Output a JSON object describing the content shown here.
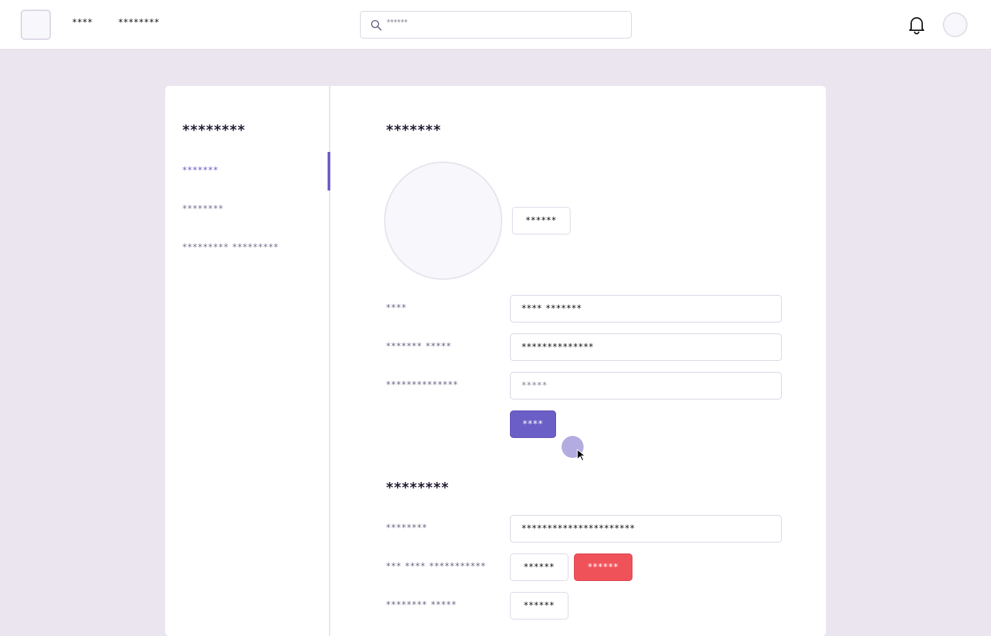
{
  "header": {
    "nav": [
      "****",
      "********"
    ],
    "search_placeholder": "******"
  },
  "sidebar": {
    "title": "********",
    "items": [
      {
        "label": "*******",
        "active": true
      },
      {
        "label": "********"
      },
      {
        "label": "********* *********"
      }
    ]
  },
  "profile": {
    "title": "*******",
    "change_avatar_label": "******",
    "fields": [
      {
        "label": "****",
        "value": "**** *******",
        "placeholder": ""
      },
      {
        "label": "******* *****",
        "value": "**************",
        "placeholder": ""
      },
      {
        "label": "**************",
        "value": "",
        "placeholder": "*****"
      }
    ],
    "save_label": "****"
  },
  "security": {
    "title": "********",
    "password_label": "********",
    "password_value": "**********************",
    "two_factor_label": "*** **** ***********",
    "two_factor_buttons": [
      "******",
      "******"
    ],
    "sessions_label": "******** *****",
    "sessions_button": "******"
  },
  "colors": {
    "accent": "#6b5fc7",
    "danger": "#f0525a",
    "background": "#ebe5f0"
  }
}
